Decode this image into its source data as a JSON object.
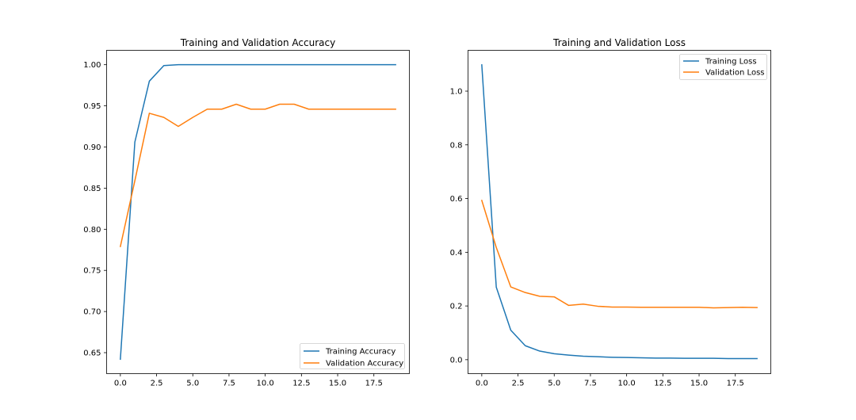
{
  "colors": {
    "training": "#1f77b4",
    "validation": "#ff7f0e"
  },
  "chart_data": [
    {
      "type": "line",
      "title": "Training and Validation Accuracy",
      "xlabel": "",
      "ylabel": "",
      "xlim": [
        -0.95,
        19.95
      ],
      "ylim": [
        0.6245,
        1.0175
      ],
      "xticks": [
        0.0,
        2.5,
        5.0,
        7.5,
        10.0,
        12.5,
        15.0,
        17.5
      ],
      "xtick_labels": [
        "0.0",
        "2.5",
        "5.0",
        "7.5",
        "10.0",
        "12.5",
        "15.0",
        "17.5"
      ],
      "yticks": [
        0.65,
        0.7,
        0.75,
        0.8,
        0.85,
        0.9,
        0.95,
        1.0
      ],
      "ytick_labels": [
        "0.65",
        "0.70",
        "0.75",
        "0.80",
        "0.85",
        "0.90",
        "0.95",
        "1.00"
      ],
      "legend_position": "lower-right",
      "grid": false,
      "x": [
        0,
        1,
        2,
        3,
        4,
        5,
        6,
        7,
        8,
        9,
        10,
        11,
        12,
        13,
        14,
        15,
        16,
        17,
        18,
        19
      ],
      "series": [
        {
          "name": "Training Accuracy",
          "color": "#1f77b4",
          "values": [
            0.642,
            0.906,
            0.98,
            0.999,
            1.0,
            1.0,
            1.0,
            1.0,
            1.0,
            1.0,
            1.0,
            1.0,
            1.0,
            1.0,
            1.0,
            1.0,
            1.0,
            1.0,
            1.0,
            1.0
          ]
        },
        {
          "name": "Validation Accuracy",
          "color": "#ff7f0e",
          "values": [
            0.779,
            0.859,
            0.941,
            0.936,
            0.925,
            0.936,
            0.946,
            0.946,
            0.952,
            0.946,
            0.946,
            0.952,
            0.952,
            0.946,
            0.946,
            0.946,
            0.946,
            0.946,
            0.946,
            0.946
          ]
        }
      ]
    },
    {
      "type": "line",
      "title": "Training and Validation Loss",
      "xlabel": "",
      "ylabel": "",
      "xlim": [
        -0.95,
        19.95
      ],
      "ylim": [
        -0.052,
        1.152
      ],
      "xticks": [
        0.0,
        2.5,
        5.0,
        7.5,
        10.0,
        12.5,
        15.0,
        17.5
      ],
      "xtick_labels": [
        "0.0",
        "2.5",
        "5.0",
        "7.5",
        "10.0",
        "12.5",
        "15.0",
        "17.5"
      ],
      "yticks": [
        0.0,
        0.2,
        0.4,
        0.6,
        0.8,
        1.0
      ],
      "ytick_labels": [
        "0.0",
        "0.2",
        "0.4",
        "0.6",
        "0.8",
        "1.0"
      ],
      "legend_position": "upper-right",
      "grid": false,
      "x": [
        0,
        1,
        2,
        3,
        4,
        5,
        6,
        7,
        8,
        9,
        10,
        11,
        12,
        13,
        14,
        15,
        16,
        17,
        18,
        19
      ],
      "series": [
        {
          "name": "Training Loss",
          "color": "#1f77b4",
          "values": [
            1.098,
            0.27,
            0.11,
            0.052,
            0.032,
            0.022,
            0.017,
            0.013,
            0.011,
            0.009,
            0.008,
            0.007,
            0.006,
            0.006,
            0.005,
            0.005,
            0.005,
            0.004,
            0.004,
            0.004
          ]
        },
        {
          "name": "Validation Loss",
          "color": "#ff7f0e",
          "values": [
            0.593,
            0.418,
            0.271,
            0.25,
            0.236,
            0.234,
            0.202,
            0.207,
            0.199,
            0.196,
            0.196,
            0.195,
            0.195,
            0.195,
            0.195,
            0.195,
            0.193,
            0.194,
            0.195,
            0.194
          ]
        }
      ]
    }
  ]
}
